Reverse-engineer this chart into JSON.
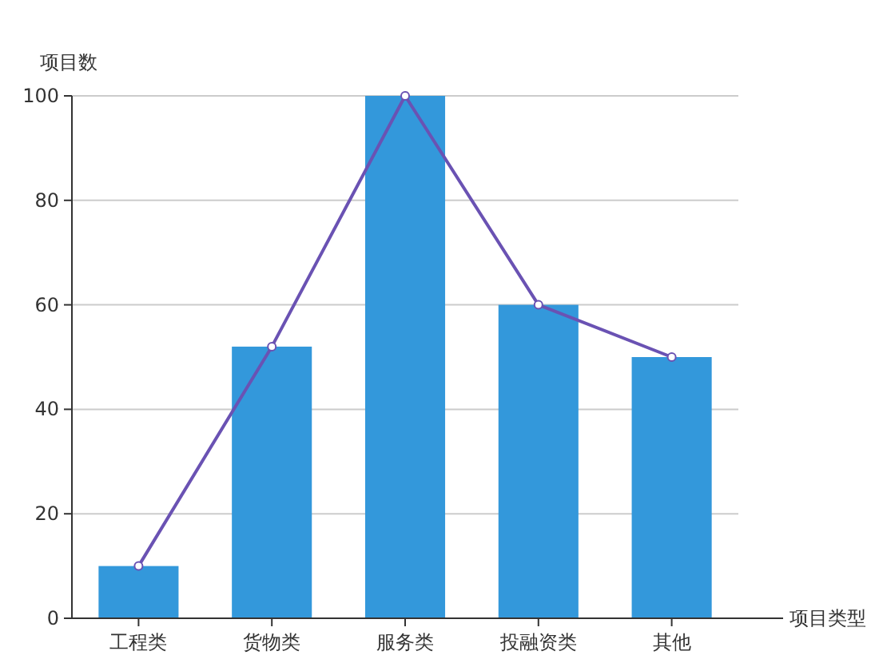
{
  "chart_data": {
    "type": "bar",
    "ylabel": "项目数",
    "xlabel": "项目类型",
    "categories": [
      "工程类",
      "货物类",
      "服务类",
      "投融资类",
      "其他"
    ],
    "series": [
      {
        "color": "#3398db",
        "values": [
          10,
          52,
          100,
          60,
          50
        ]
      },
      {
        "type": "line",
        "color": "#6a52b3",
        "marker": "circle",
        "values": [
          10,
          52,
          100,
          60,
          50
        ]
      }
    ],
    "ylim": [
      0,
      100
    ],
    "yticks": [
      0,
      20,
      40,
      60,
      80,
      100
    ],
    "grid": "y"
  }
}
